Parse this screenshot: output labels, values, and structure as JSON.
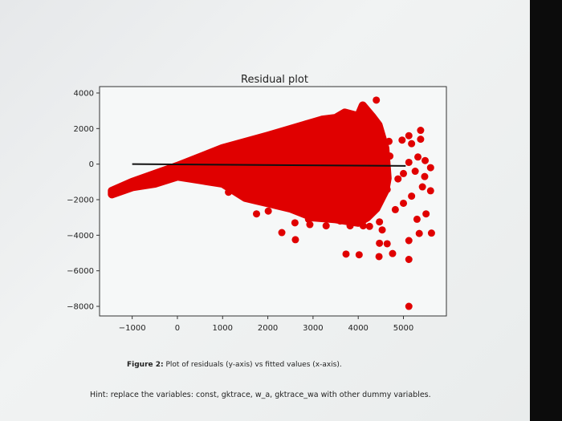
{
  "chart_data": {
    "type": "scatter",
    "title": "Residual plot",
    "xlabel": "",
    "ylabel": "",
    "xlim": [
      -1722,
      5950
    ],
    "ylim": [
      -8540,
      4360
    ],
    "xticks": [
      -1000,
      0,
      1000,
      2000,
      3000,
      4000,
      5000
    ],
    "yticks": [
      4000,
      2000,
      0,
      -2000,
      -4000,
      -6000,
      -8000
    ],
    "xtick_labels": [
      "−1000",
      "0",
      "1000",
      "2000",
      "3000",
      "4000",
      "5000"
    ],
    "ytick_labels": [
      "4000",
      "2000",
      "0",
      "−2000",
      "−4000",
      "−6000",
      "−8000"
    ],
    "grid": false,
    "point_color": "#e00000",
    "line_color": "#111111",
    "zero_line": {
      "x": [
        -1000,
        5050
      ],
      "y": [
        0,
        -100
      ]
    },
    "dense_region": [
      [
        -1450,
        -1500
      ],
      [
        -1000,
        -1000
      ],
      [
        0,
        -100
      ],
      [
        1000,
        900
      ],
      [
        2000,
        1600
      ],
      [
        2800,
        2200
      ],
      [
        3200,
        2500
      ],
      [
        3500,
        2600
      ],
      [
        3700,
        2900
      ],
      [
        4000,
        2700
      ],
      [
        4100,
        3300
      ],
      [
        4300,
        2700
      ],
      [
        4450,
        2200
      ],
      [
        4600,
        900
      ],
      [
        4650,
        -800
      ],
      [
        4600,
        -1500
      ],
      [
        4400,
        -2500
      ],
      [
        4200,
        -3000
      ],
      [
        4000,
        -3300
      ],
      [
        3500,
        -3100
      ],
      [
        3000,
        -3000
      ],
      [
        2500,
        -2500
      ],
      [
        2000,
        -2200
      ],
      [
        1500,
        -1900
      ],
      [
        1000,
        -1100
      ],
      [
        500,
        -900
      ],
      [
        0,
        -700
      ],
      [
        -500,
        -1100
      ],
      [
        -1000,
        -1300
      ],
      [
        -1450,
        -1700
      ]
    ],
    "points": [
      [
        4400,
        3600
      ],
      [
        5380,
        1900
      ],
      [
        5380,
        1400
      ],
      [
        5120,
        1600
      ],
      [
        5180,
        1150
      ],
      [
        4970,
        1350
      ],
      [
        5320,
        400
      ],
      [
        5480,
        200
      ],
      [
        5600,
        -200
      ],
      [
        5120,
        100
      ],
      [
        5470,
        -700
      ],
      [
        5260,
        -400
      ],
      [
        5000,
        -530
      ],
      [
        5420,
        -1280
      ],
      [
        5600,
        -1500
      ],
      [
        5180,
        -1800
      ],
      [
        5000,
        -2200
      ],
      [
        4820,
        -2560
      ],
      [
        5500,
        -2800
      ],
      [
        5300,
        -3100
      ],
      [
        5350,
        -3900
      ],
      [
        5620,
        -3880
      ],
      [
        5120,
        -4300
      ],
      [
        4640,
        -4480
      ],
      [
        4470,
        -4450
      ],
      [
        4760,
        -5030
      ],
      [
        4460,
        -5200
      ],
      [
        5120,
        -5360
      ],
      [
        3730,
        -5060
      ],
      [
        4020,
        -5100
      ],
      [
        2310,
        -3850
      ],
      [
        2610,
        -4250
      ],
      [
        1130,
        -1580
      ],
      [
        1750,
        -2800
      ],
      [
        2010,
        -2640
      ],
      [
        5120,
        -8000
      ],
      [
        4470,
        -3250
      ],
      [
        4530,
        -3700
      ],
      [
        2930,
        -3400
      ],
      [
        3290,
        -3470
      ],
      [
        3820,
        -3470
      ],
      [
        4110,
        -3470
      ],
      [
        4640,
        -1430
      ],
      [
        4880,
        -830
      ],
      [
        4700,
        450
      ],
      [
        4680,
        1280
      ],
      [
        2600,
        -3300
      ],
      [
        2900,
        -3100
      ],
      [
        3600,
        -3200
      ],
      [
        4250,
        -3500
      ]
    ]
  },
  "caption": {
    "label": "Figure 2:",
    "text": "Plot of residuals (y-axis) vs fitted values (x-axis)."
  },
  "hint": "Hint: replace the variables: const, gktrace, w_a, gktrace_wa with other dummy variables."
}
